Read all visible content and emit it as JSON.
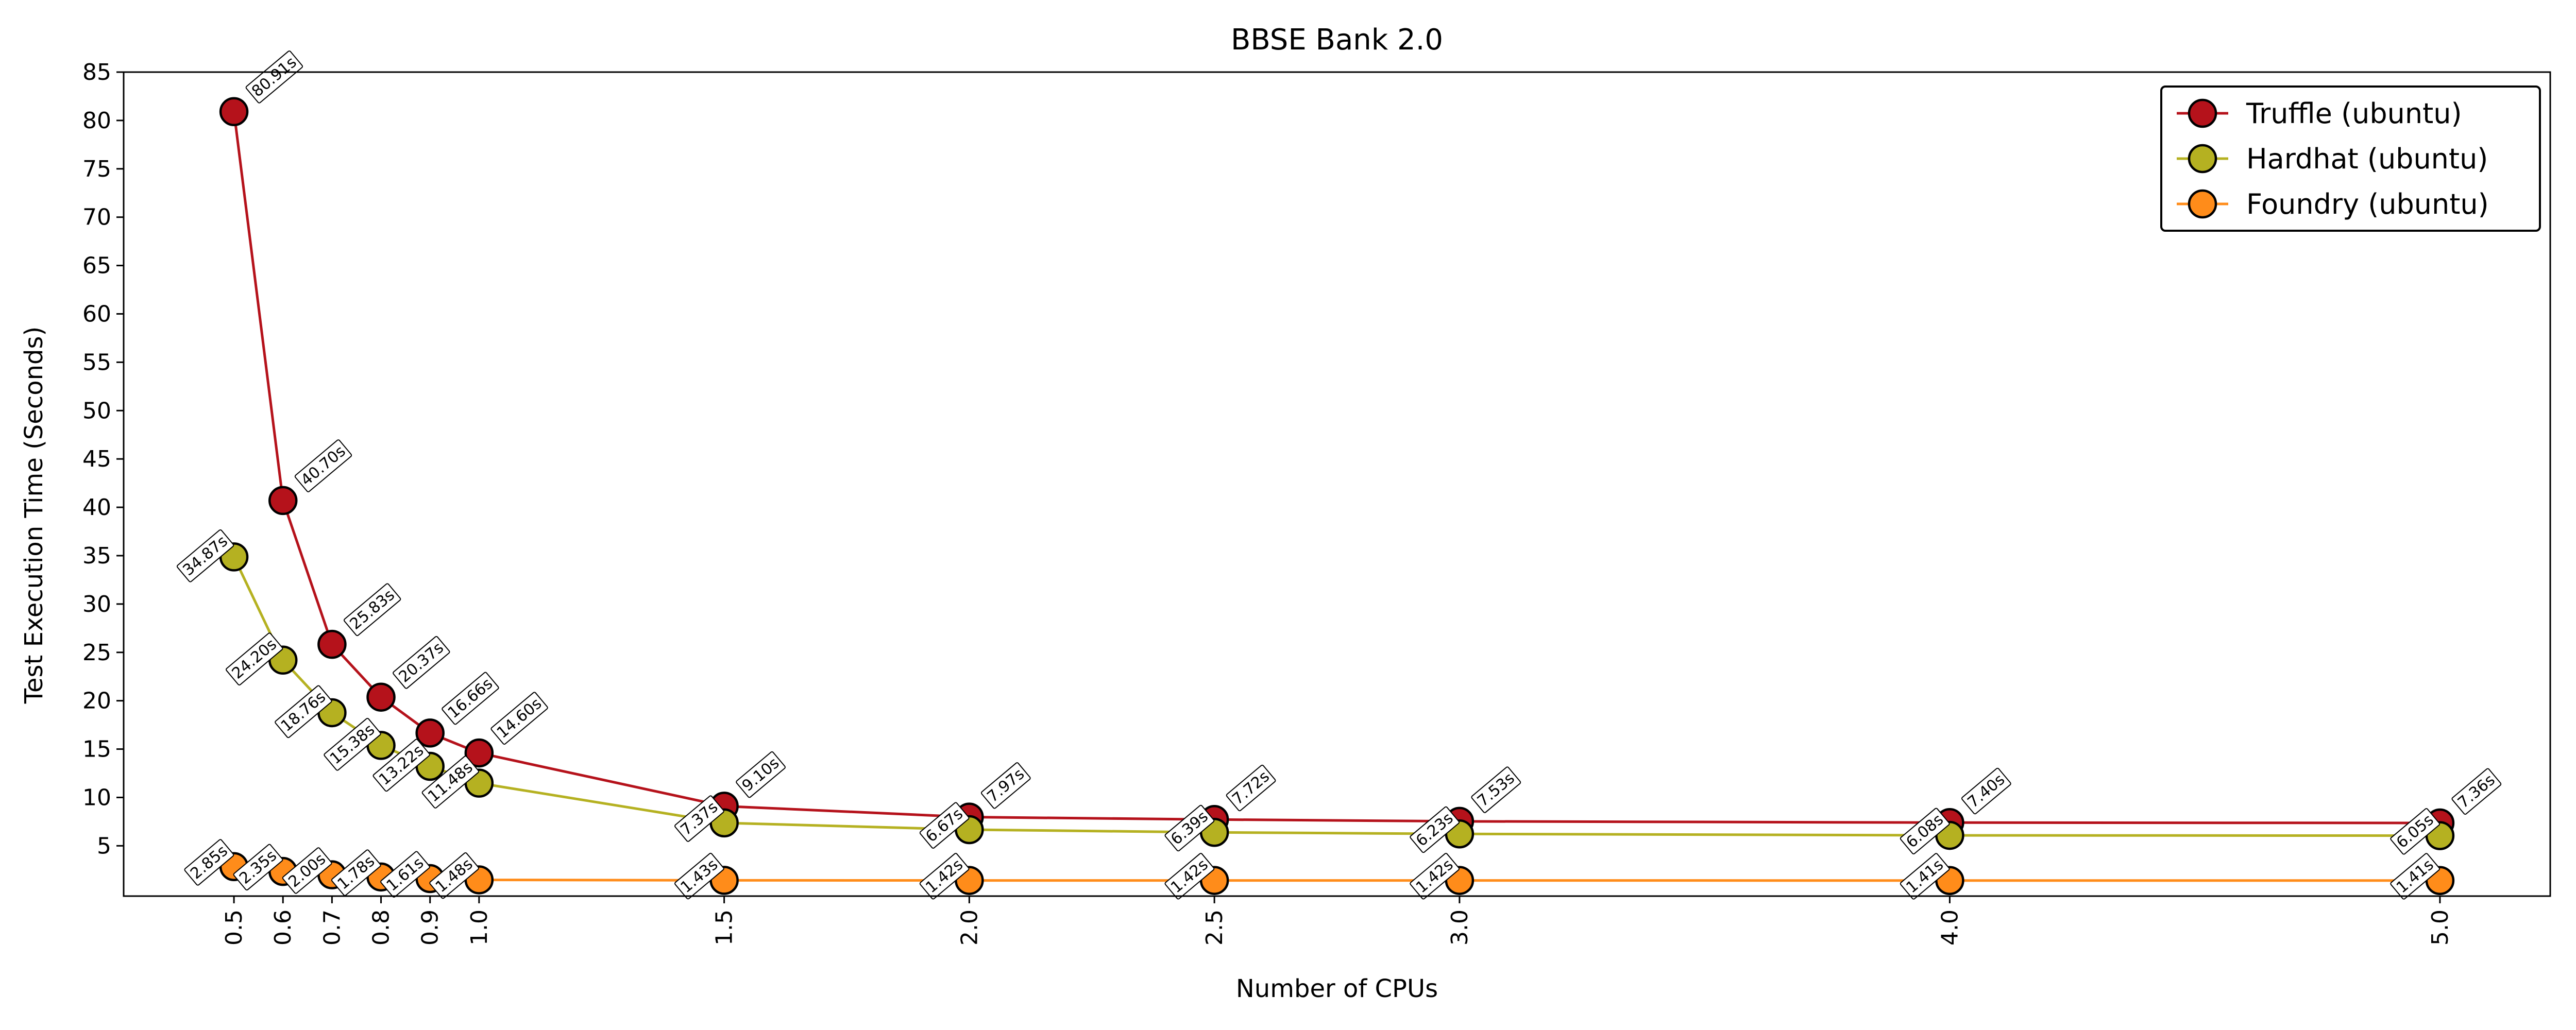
{
  "chart_data": {
    "type": "line",
    "title": "BBSE Bank 2.0",
    "xlabel": "Number of CPUs",
    "ylabel": "Test Execution Time (Seconds)",
    "x": [
      0.5,
      0.6,
      0.7,
      0.8,
      0.9,
      1.0,
      1.5,
      2.0,
      2.5,
      3.0,
      4.0,
      5.0
    ],
    "x_tick_labels": [
      "0.5",
      "0.6",
      "0.7",
      "0.8",
      "0.9",
      "1.0",
      "1.5",
      "2.0",
      "2.5",
      "3.0",
      "4.0",
      "5.0"
    ],
    "y_ticks": [
      5,
      10,
      15,
      20,
      25,
      30,
      35,
      40,
      45,
      50,
      55,
      60,
      65,
      70,
      75,
      80,
      85
    ],
    "xlim": [
      0.275,
      5.225
    ],
    "ylim": [
      -0.2,
      85
    ],
    "grid": false,
    "legend_position": "top-right",
    "series": [
      {
        "name": "Truffle (ubuntu)",
        "color": "#b5121b",
        "values": [
          80.91,
          40.7,
          25.83,
          20.37,
          16.66,
          14.6,
          9.1,
          7.97,
          7.72,
          7.53,
          7.4,
          7.36
        ],
        "labels": [
          "80.91s",
          "40.70s",
          "25.83s",
          "20.37s",
          "16.66s",
          "14.60s",
          "9.10s",
          "7.97s",
          "7.72s",
          "7.53s",
          "7.40s",
          "7.36s"
        ]
      },
      {
        "name": "Hardhat (ubuntu)",
        "color": "#b5b121",
        "values": [
          34.87,
          24.2,
          18.76,
          15.38,
          13.22,
          11.48,
          7.37,
          6.67,
          6.39,
          6.23,
          6.08,
          6.05
        ],
        "labels": [
          "34.87s",
          "24.20s",
          "18.76s",
          "15.38s",
          "13.22s",
          "11.48s",
          "7.37s",
          "6.67s",
          "6.39s",
          "6.23s",
          "6.08s",
          "6.05s"
        ]
      },
      {
        "name": "Foundry (ubuntu)",
        "color": "#ff8c1a",
        "values": [
          2.85,
          2.35,
          2.0,
          1.78,
          1.61,
          1.48,
          1.43,
          1.42,
          1.42,
          1.42,
          1.41,
          1.41
        ],
        "labels": [
          "2.85s",
          "2.35s",
          "2.00s",
          "1.78s",
          "1.61s",
          "1.48s",
          "1.43s",
          "1.42s",
          "1.42s",
          "1.42s",
          "1.41s",
          "1.41s"
        ]
      }
    ]
  }
}
